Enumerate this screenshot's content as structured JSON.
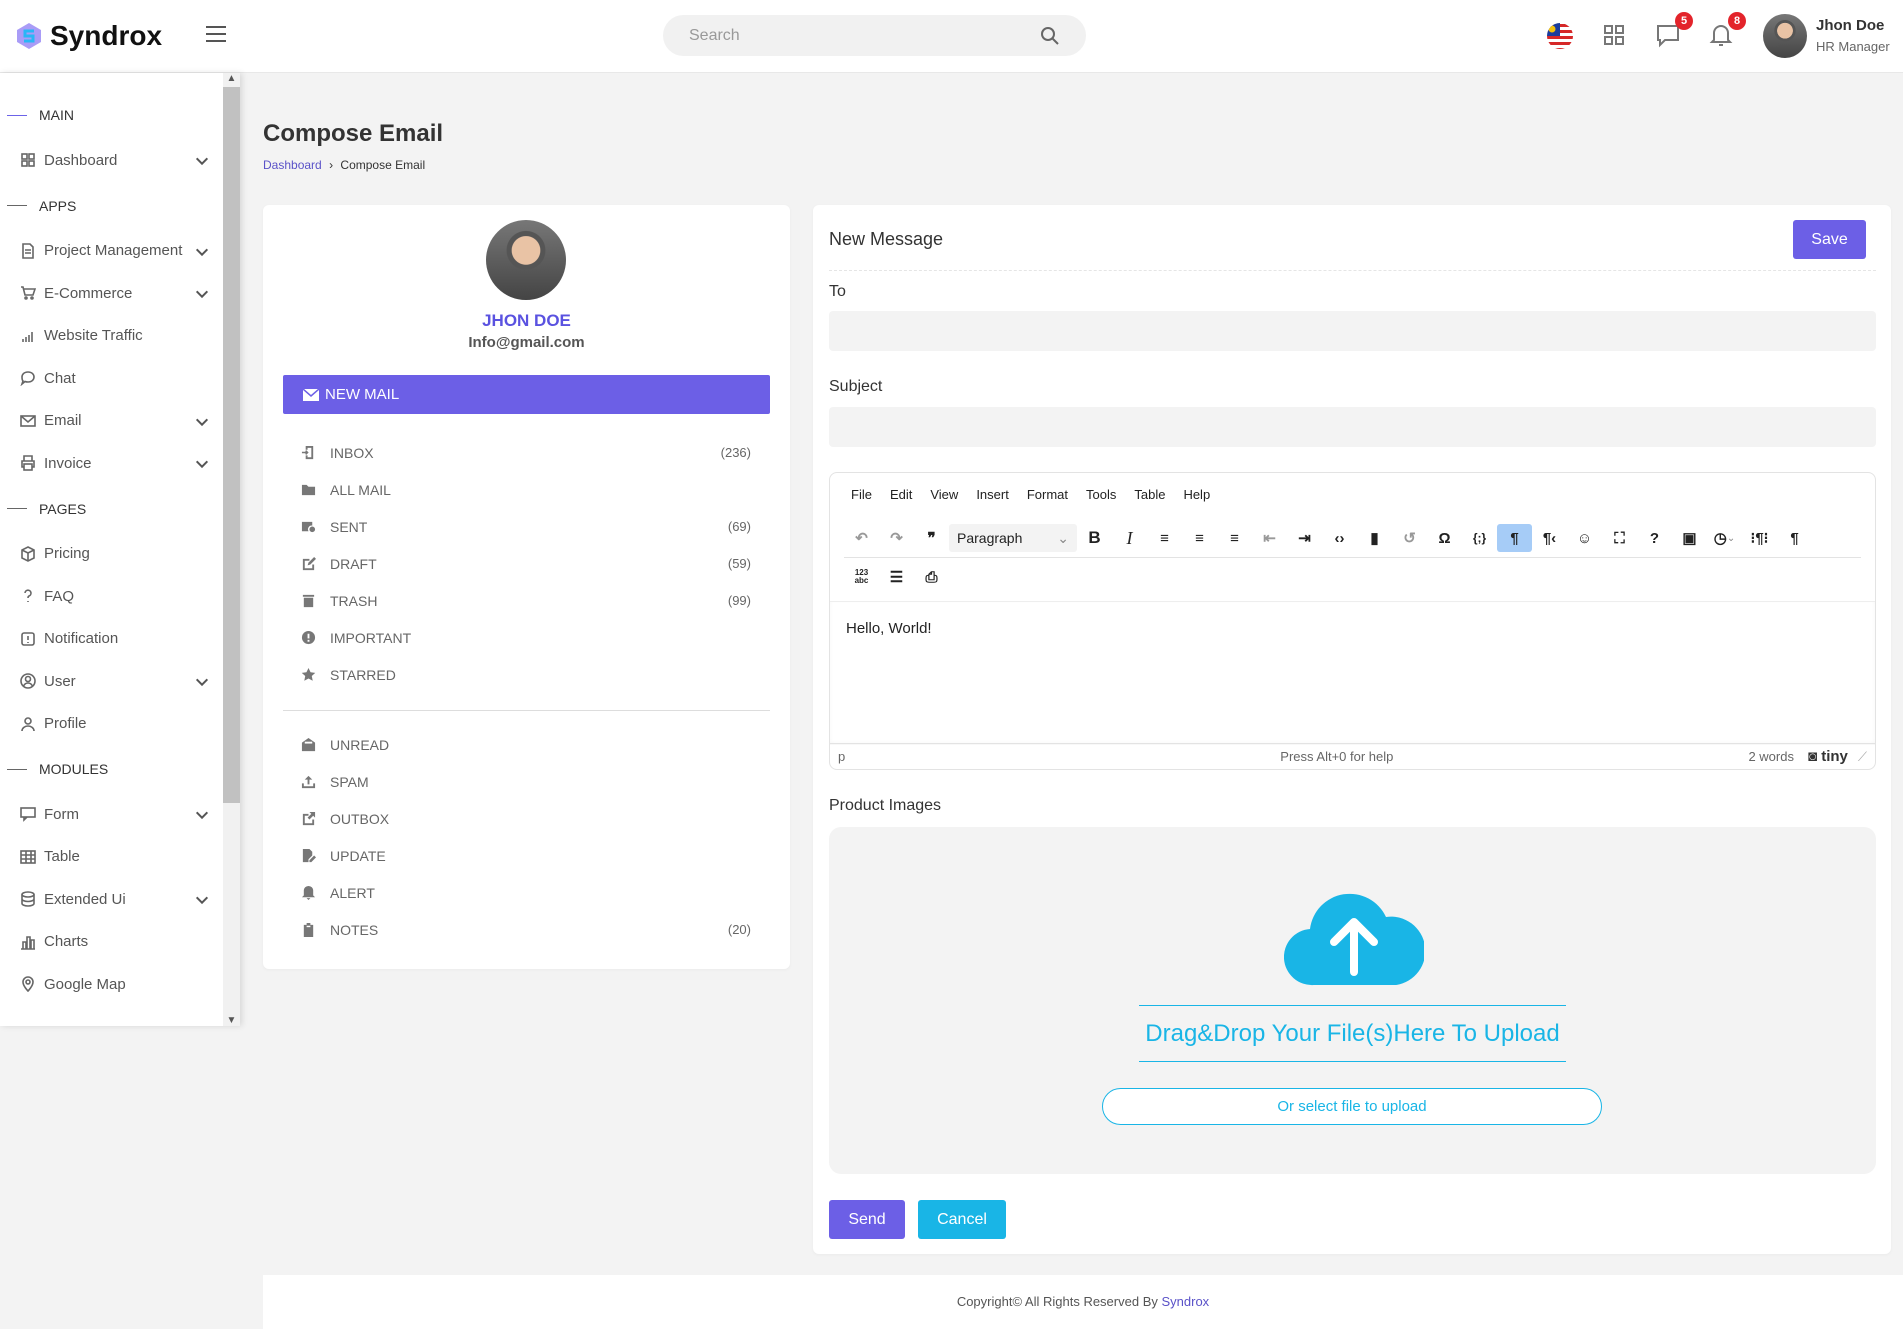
{
  "header": {
    "brand": "Syndrox",
    "search_placeholder": "Search",
    "messages_count": "5",
    "notifications_count": "8",
    "user_name": "Jhon Doe",
    "user_role": "HR Manager"
  },
  "sidebar": {
    "sections": [
      {
        "title": "MAIN",
        "items": [
          {
            "label": "Dashboard",
            "icon": "grid-icon",
            "expandable": true
          }
        ]
      },
      {
        "title": "APPS",
        "items": [
          {
            "label": "Project Management",
            "icon": "file-icon",
            "expandable": true
          },
          {
            "label": "E-Commerce",
            "icon": "cart-icon",
            "expandable": true
          },
          {
            "label": "Website Traffic",
            "icon": "bar-signal-icon",
            "expandable": false
          },
          {
            "label": "Chat",
            "icon": "chat-icon",
            "expandable": false
          },
          {
            "label": "Email",
            "icon": "mail-icon",
            "expandable": true
          },
          {
            "label": "Invoice",
            "icon": "printer-icon",
            "expandable": true
          }
        ]
      },
      {
        "title": "PAGES",
        "items": [
          {
            "label": "Pricing",
            "icon": "box-icon",
            "expandable": false
          },
          {
            "label": "FAQ",
            "icon": "question-icon",
            "expandable": false
          },
          {
            "label": "Notification",
            "icon": "alert-icon",
            "expandable": false
          },
          {
            "label": "User",
            "icon": "user-circle-icon",
            "expandable": true
          },
          {
            "label": "Profile",
            "icon": "user-icon",
            "expandable": false
          }
        ]
      },
      {
        "title": "MODULES",
        "items": [
          {
            "label": "Form",
            "icon": "form-icon",
            "expandable": true
          },
          {
            "label": "Table",
            "icon": "table-icon",
            "expandable": false
          },
          {
            "label": "Extended Ui",
            "icon": "database-icon",
            "expandable": true
          },
          {
            "label": "Charts",
            "icon": "chart-icon",
            "expandable": false
          },
          {
            "label": "Google Map",
            "icon": "map-pin-icon",
            "expandable": false
          }
        ]
      }
    ]
  },
  "page": {
    "title": "Compose Email",
    "breadcrumb": [
      "Dashboard",
      "Compose Email"
    ]
  },
  "profile": {
    "name": "JHON DOE",
    "email": "Info@gmail.com",
    "new_mail_label": "NEW MAIL"
  },
  "mailboxes": [
    {
      "label": "INBOX",
      "count": "(236)"
    },
    {
      "label": "ALL MAIL",
      "count": ""
    },
    {
      "label": "SENT",
      "count": "(69)"
    },
    {
      "label": "DRAFT",
      "count": "(59)"
    },
    {
      "label": "TRASH",
      "count": "(99)"
    },
    {
      "label": "IMPORTANT",
      "count": ""
    },
    {
      "label": "STARRED",
      "count": ""
    }
  ],
  "mailboxes2": [
    {
      "label": "UNREAD",
      "count": ""
    },
    {
      "label": "SPAM",
      "count": ""
    },
    {
      "label": "OUTBOX",
      "count": ""
    },
    {
      "label": "UPDATE",
      "count": ""
    },
    {
      "label": "ALERT",
      "count": ""
    },
    {
      "label": "NOTES",
      "count": "(20)"
    }
  ],
  "compose": {
    "title": "New Message",
    "save_label": "Save",
    "to_label": "To",
    "to_value": "",
    "subject_label": "Subject",
    "subject_value": "",
    "editor": {
      "menu": [
        "File",
        "Edit",
        "View",
        "Insert",
        "Format",
        "Tools",
        "Table",
        "Help"
      ],
      "block_format": "Paragraph",
      "content": "Hello, World!",
      "path": "p",
      "help": "Press Alt+0 for help",
      "word_count": "2 words",
      "brand": "tiny"
    },
    "images_label": "Product Images",
    "drop_text": "Drag&Drop Your File(s)Here To Upload",
    "select_label": "Or select file to upload",
    "send_label": "Send",
    "cancel_label": "Cancel"
  },
  "footer": {
    "text": "Copyright© All Rights Reserved By ",
    "link": "Syndrox"
  },
  "colors": {
    "primary": "#6c5fe6",
    "accent": "#19b5e6",
    "badge": "#e3242b"
  }
}
